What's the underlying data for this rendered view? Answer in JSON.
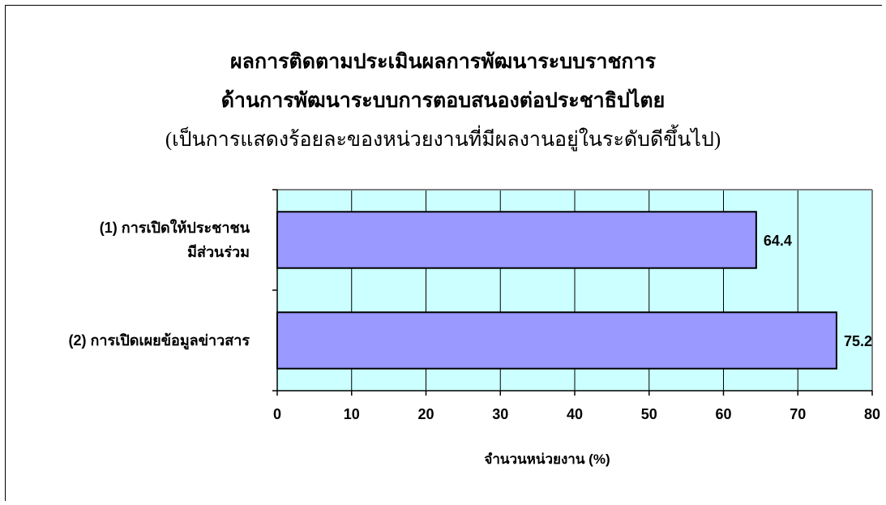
{
  "chart_data": {
    "type": "bar",
    "orientation": "horizontal",
    "title": "ผลการติดตามประเมินผลการพัฒนาระบบราชการ",
    "title_line2": "ด้านการพัฒนาระบบการตอบสนองต่อประชาธิปไตย",
    "subtitle": "(เป็นการแสดงร้อยละของหน่วยงานที่มีผลงานอยู่ในระดับดีขึ้นไป)",
    "categories": [
      [
        "(1) การเปิดให้ประชาชน",
        "มีส่วนร่วม"
      ],
      [
        "(2) การเปิดเผยข้อมูลข่าวสาร"
      ]
    ],
    "values": [
      64.4,
      75.2
    ],
    "data_labels": [
      "64.4",
      "75.2"
    ],
    "xlabel": "จำนวนหน่วยงาน (%)",
    "ylabel": "",
    "xlim": [
      0,
      80
    ],
    "xticks": [
      0,
      10,
      20,
      30,
      40,
      50,
      60,
      70,
      80
    ],
    "xtick_labels": [
      "0",
      "10",
      "20",
      "30",
      "40",
      "50",
      "60",
      "70",
      "80"
    ],
    "grid": true,
    "legend": "none",
    "colors": {
      "plot_background": "#ccffff",
      "bar_fill": "#9999ff",
      "bar_edge": "#000000",
      "gridline": "#000000",
      "plot_border": "#808080"
    }
  }
}
